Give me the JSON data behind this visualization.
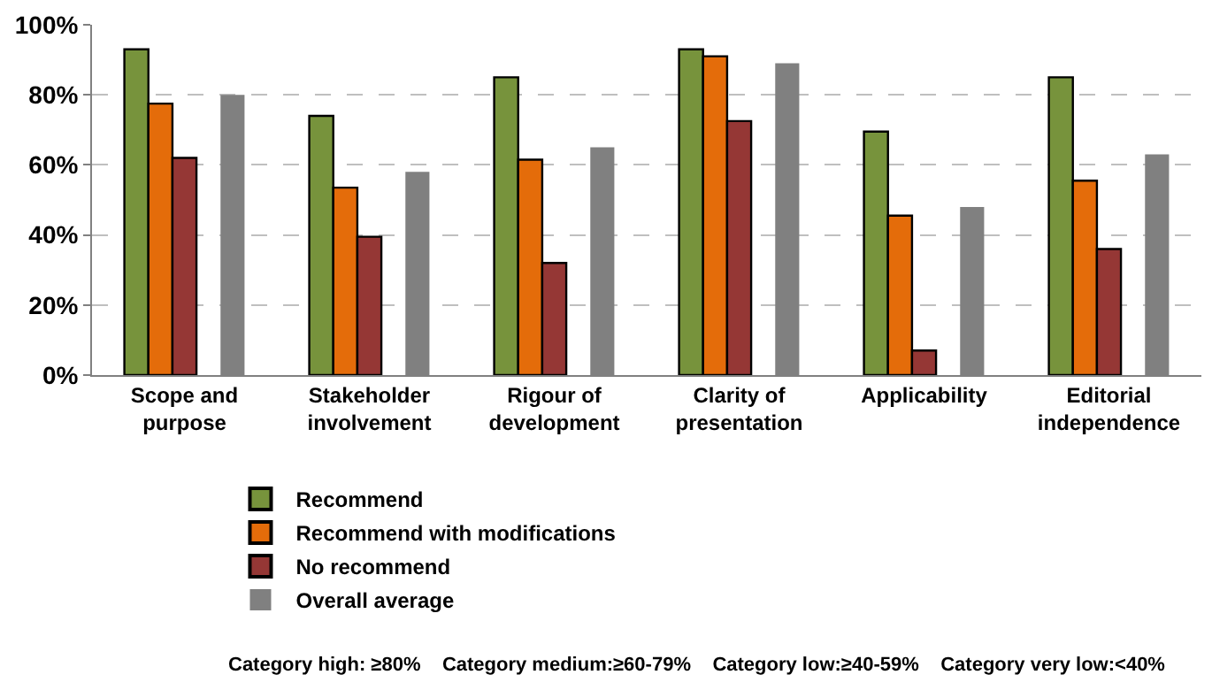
{
  "chart_data": {
    "type": "bar",
    "categories": [
      "Scope and purpose",
      "Stakeholder involvement",
      "Rigour of development",
      "Clarity of presentation",
      "Applicability",
      "Editorial independence"
    ],
    "series": [
      {
        "name": "Recommend",
        "color": "#77933c",
        "values": [
          93,
          74,
          85,
          93,
          69.5,
          85
        ]
      },
      {
        "name": "Recommend with modifications",
        "color": "#e46c0a",
        "values": [
          77.5,
          53.5,
          61.5,
          91,
          45.5,
          55.5
        ]
      },
      {
        "name": "No recommend",
        "color": "#953735",
        "values": [
          62,
          39.5,
          32,
          72.5,
          7,
          36
        ]
      },
      {
        "name": "Overall average",
        "color": "#808080",
        "values": [
          80,
          58,
          65,
          89,
          48,
          63
        ]
      }
    ],
    "ylim": [
      0,
      100
    ],
    "yticks": [
      {
        "value": 0,
        "label": "0%"
      },
      {
        "value": 20,
        "label": "20%"
      },
      {
        "value": 40,
        "label": "40%"
      },
      {
        "value": 60,
        "label": "60%"
      },
      {
        "value": 80,
        "label": "80%"
      },
      {
        "value": 100,
        "label": "100%"
      }
    ],
    "grid": "y",
    "legend": "bottom",
    "annotations": [
      "Category high: ≥80%    Category medium:≥60-79%    Category low:≥40-59%    Category very low:<40%"
    ]
  }
}
